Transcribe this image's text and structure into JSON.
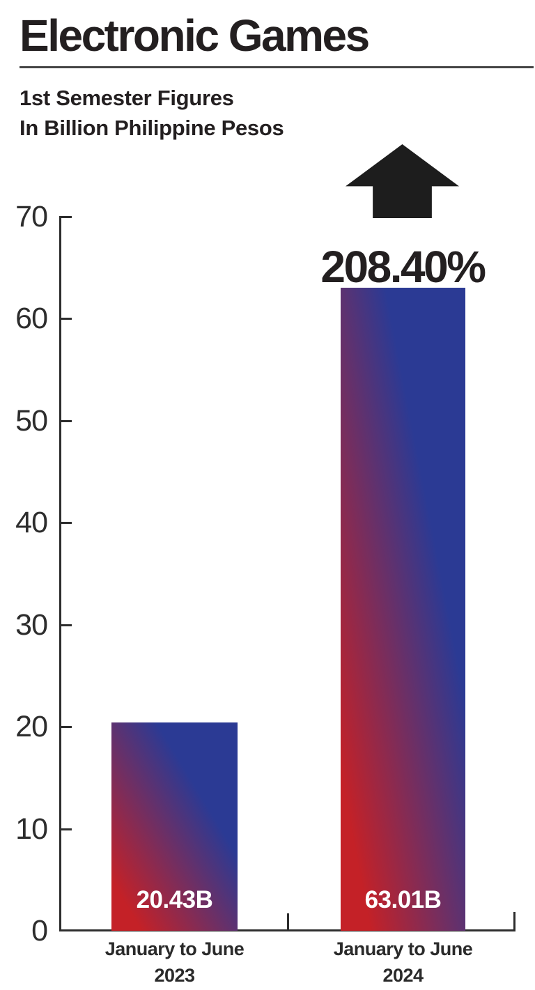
{
  "page": {
    "title": "Electronic Games",
    "subtitle_line1": "1st Semester Figures",
    "subtitle_line2": "In Billion Philippine Pesos"
  },
  "annotation": {
    "percent": "208.40%",
    "arrow_icon": "up-arrow"
  },
  "colors": {
    "bar_red": "#c42127",
    "bar_blue": "#2b3a94",
    "ink": "#231f20",
    "axis": "#2d2d2d",
    "label_on_bar": "#ffffff"
  },
  "chart_data": {
    "type": "bar",
    "title": "Electronic Games",
    "subtitle": "1st Semester Figures In Billion Philippine Pesos",
    "unit": "Billion Philippine Pesos",
    "categories": [
      "January to June 2023",
      "January to June 2024"
    ],
    "category_lines": [
      [
        "January to June",
        "2023"
      ],
      [
        "January to June",
        "2024"
      ]
    ],
    "values": [
      20.43,
      63.01
    ],
    "bar_labels": [
      "20.43B",
      "63.01B"
    ],
    "ylim": [
      0,
      70
    ],
    "yticks": [
      0,
      10,
      20,
      30,
      40,
      50,
      60,
      70
    ],
    "annotation": "208.40%",
    "annotation_target": "January to June 2024",
    "grid": false,
    "legend": false,
    "bar_gradient": [
      "#c42127",
      "#2b3a94"
    ]
  }
}
